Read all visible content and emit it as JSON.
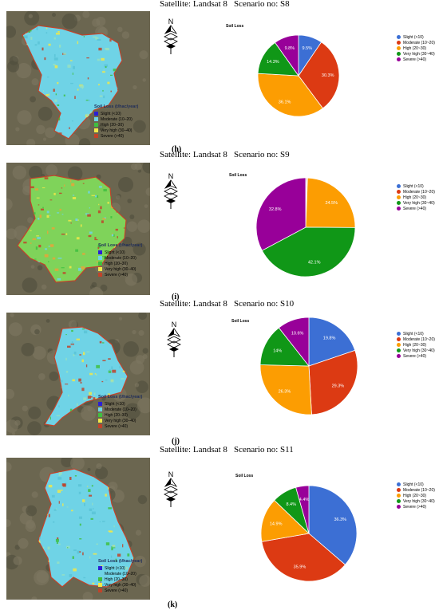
{
  "panels": [
    {
      "sub_label": "(h)",
      "satellite": "Satellite: Landsat 8",
      "scenario": "Scenario no: S8",
      "map_legend_title": "Soil Loss (t/hac/year)",
      "map_legend_items": [
        "Slight (<10)",
        "Moderate (10–20)",
        "High (20–30)",
        "Very high (30–40)",
        "Severe (>40)"
      ],
      "map_style": "cyan"
    },
    {
      "sub_label": "(i)",
      "satellite": "Satellite: Landsat 8",
      "scenario": "Scenario no: S9",
      "map_legend_title": "Soil Loss (t/hac/year)",
      "map_legend_items": [
        "Slight (<10)",
        "Moderate (10–20)",
        "High (20–30)",
        "Very high (30–40)",
        "Severe (>40)"
      ],
      "map_style": "green"
    },
    {
      "sub_label": "(j)",
      "satellite": "Satellite: Landsat 8",
      "scenario": "Scenario no: S10",
      "map_legend_title": "Soil Loss (t/hac/year)",
      "map_legend_items": [
        "Slight (<10)",
        "Moderate (10–20)",
        "High (20–30)",
        "Very high (30–40)",
        "Severe (>40)"
      ],
      "map_style": "cyan"
    },
    {
      "sub_label": "(k)",
      "satellite": "Satellite: Landsat 8",
      "scenario": "Scenario no: S11",
      "map_legend_title": "Soil Loss (t/hac/year)",
      "map_legend_items": [
        "Slight (<10)",
        "Moderate (10–20)",
        "High (20–30)",
        "Very high (30–40)",
        "Severe (>40)"
      ],
      "map_style": "cyan"
    }
  ],
  "map_legend_colors": [
    "#2b1fd6",
    "#6fd3e6",
    "#3fbf3f",
    "#f0e84a",
    "#c0432a"
  ],
  "north_label": "N",
  "chart_data": [
    {
      "type": "pie",
      "title": "Soil Loss",
      "categories": [
        "Slight (<10)",
        "Moderate (10~20)",
        "High (20~30)",
        "Very high (30~40)",
        "Severe (>40)"
      ],
      "values": [
        9.5,
        30.3,
        36.1,
        14.3,
        9.8
      ],
      "labels": [
        "9.5%",
        "30.3%",
        "36.1%",
        "14.3%",
        "9.8%"
      ],
      "colors": [
        "#3c6fd4",
        "#dc3a13",
        "#fc9d02",
        "#109717",
        "#980099"
      ],
      "legend": "right"
    },
    {
      "type": "pie",
      "title": "Soil Loss",
      "categories": [
        "Slight (<10)",
        "Moderate (10~20)",
        "High (20~30)",
        "Very high (30~40)",
        "Severe (>40)"
      ],
      "values": [
        0.3,
        0.3,
        24.5,
        42.1,
        32.8
      ],
      "labels": [
        "",
        "",
        "24.5%",
        "42.1%",
        "32.8%"
      ],
      "colors": [
        "#3c6fd4",
        "#dc3a13",
        "#fc9d02",
        "#109717",
        "#980099"
      ],
      "legend": "right"
    },
    {
      "type": "pie",
      "title": "Soil Loss",
      "categories": [
        "Slight (<10)",
        "Moderate (10~20)",
        "High (20~30)",
        "Very high (30~40)",
        "Severe (>40)"
      ],
      "values": [
        19.8,
        29.3,
        26.3,
        14,
        10.6
      ],
      "labels": [
        "19.8%",
        "29.3%",
        "26.3%",
        "14%",
        "10.6%"
      ],
      "colors": [
        "#3c6fd4",
        "#dc3a13",
        "#fc9d02",
        "#109717",
        "#980099"
      ],
      "legend": "right"
    },
    {
      "type": "pie",
      "title": "Soil Loss",
      "categories": [
        "Slight (<10)",
        "Moderate (10~20)",
        "High (20~30)",
        "Very high (30~40)",
        "Severe (>40)"
      ],
      "values": [
        36.3,
        35.9,
        14.9,
        8.4,
        4.4
      ],
      "labels": [
        "36.3%",
        "35.9%",
        "14.9%",
        "8.4%",
        "4.4%"
      ],
      "colors": [
        "#3c6fd4",
        "#dc3a13",
        "#fc9d02",
        "#109717",
        "#980099"
      ],
      "legend": "right"
    }
  ]
}
